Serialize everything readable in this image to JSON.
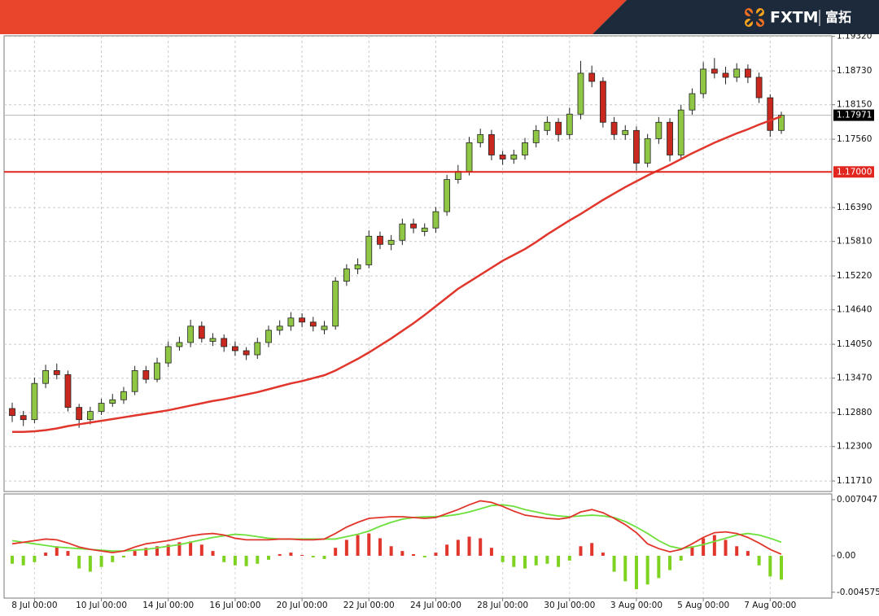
{
  "header": {
    "brand": "FXTM",
    "brand_cn": "富拓"
  },
  "chart_data": [
    {
      "type": "candlestick",
      "categories": [
        null,
        null,
        "8 Jul 00:00",
        null,
        null,
        null,
        null,
        null,
        "10 Jul 00:00",
        null,
        null,
        null,
        null,
        null,
        "14 Jul 00:00",
        null,
        null,
        null,
        null,
        null,
        "16 Jul 00:00",
        null,
        null,
        null,
        null,
        null,
        "20 Jul 00:00",
        null,
        null,
        null,
        null,
        null,
        "22 Jul 00:00",
        null,
        null,
        null,
        null,
        null,
        "24 Jul 00:00",
        null,
        null,
        null,
        null,
        null,
        "28 Jul 00:00",
        null,
        null,
        null,
        null,
        null,
        "30 Jul 00:00",
        null,
        null,
        null,
        null,
        null,
        "3 Aug 00:00",
        null,
        null,
        null,
        null,
        null,
        "5 Aug 00:00",
        null,
        null,
        null,
        null,
        null,
        "7 Aug 00:00",
        null
      ],
      "open": [
        1.1295,
        1.1283,
        1.1276,
        1.1338,
        1.136,
        1.1353,
        1.1297,
        1.1276,
        1.129,
        1.1304,
        1.131,
        1.1324,
        1.136,
        1.1345,
        1.1373,
        1.1401,
        1.1408,
        1.1436,
        1.141,
        1.1415,
        1.1401,
        1.1394,
        1.1387,
        1.1408,
        1.1429,
        1.1436,
        1.145,
        1.1443,
        1.143,
        1.1436,
        1.1513,
        1.1534,
        1.1541,
        1.159,
        1.1576,
        1.1583,
        1.1611,
        1.1598,
        1.1604,
        1.1632,
        1.1687,
        1.1701,
        1.175,
        1.1764,
        1.1729,
        1.1722,
        1.1729,
        1.175,
        1.1771,
        1.1785,
        1.1764,
        1.1799,
        1.1869,
        1.1855,
        1.1785,
        1.1764,
        1.1771,
        1.1715,
        1.1757,
        1.1785,
        1.1729,
        1.1806,
        1.1834,
        1.1876,
        1.1869,
        1.1862,
        1.1876,
        1.1862,
        1.1827,
        1.1771
      ],
      "high": [
        1.1305,
        1.1291,
        1.1348,
        1.137,
        1.1372,
        1.136,
        1.1303,
        1.1298,
        1.1312,
        1.132,
        1.1332,
        1.1368,
        1.1368,
        1.1382,
        1.141,
        1.1418,
        1.1447,
        1.1444,
        1.1424,
        1.1422,
        1.141,
        1.14,
        1.1416,
        1.1437,
        1.1446,
        1.146,
        1.1458,
        1.1452,
        1.1445,
        1.152,
        1.1542,
        1.1552,
        1.16,
        1.1598,
        1.1592,
        1.162,
        1.162,
        1.1612,
        1.164,
        1.1695,
        1.1712,
        1.176,
        1.1774,
        1.1772,
        1.1736,
        1.1738,
        1.1758,
        1.178,
        1.1795,
        1.1792,
        1.181,
        1.189,
        1.1882,
        1.1862,
        1.1794,
        1.178,
        1.1778,
        1.1765,
        1.1794,
        1.1792,
        1.1815,
        1.1843,
        1.1888,
        1.1895,
        1.188,
        1.1886,
        1.1884,
        1.187,
        1.1833,
        1.1803
      ],
      "low": [
        1.1272,
        1.1265,
        1.127,
        1.133,
        1.1345,
        1.129,
        1.1262,
        1.1268,
        1.1284,
        1.1298,
        1.1303,
        1.1318,
        1.1338,
        1.134,
        1.1366,
        1.1394,
        1.14,
        1.1408,
        1.1402,
        1.1392,
        1.1385,
        1.1378,
        1.138,
        1.14,
        1.1421,
        1.1428,
        1.1434,
        1.1427,
        1.1422,
        1.143,
        1.1505,
        1.1525,
        1.1535,
        1.1568,
        1.1566,
        1.1575,
        1.1595,
        1.159,
        1.1596,
        1.1625,
        1.168,
        1.1694,
        1.1742,
        1.172,
        1.1712,
        1.1714,
        1.1721,
        1.1742,
        1.1763,
        1.1752,
        1.1756,
        1.179,
        1.1845,
        1.1776,
        1.1755,
        1.1755,
        1.1702,
        1.1708,
        1.1748,
        1.1718,
        1.1722,
        1.1798,
        1.1826,
        1.186,
        1.185,
        1.1854,
        1.1852,
        1.1818,
        1.176,
        1.1765
      ],
      "close": [
        1.1283,
        1.1276,
        1.1338,
        1.136,
        1.1353,
        1.1297,
        1.1276,
        1.129,
        1.1304,
        1.131,
        1.1324,
        1.136,
        1.1345,
        1.1373,
        1.1401,
        1.1408,
        1.1436,
        1.1415,
        1.1415,
        1.1401,
        1.1394,
        1.1387,
        1.1408,
        1.1429,
        1.1436,
        1.145,
        1.1443,
        1.1436,
        1.1436,
        1.1513,
        1.1534,
        1.1541,
        1.159,
        1.1576,
        1.1583,
        1.1611,
        1.1604,
        1.1604,
        1.1632,
        1.1687,
        1.1701,
        1.175,
        1.1764,
        1.1729,
        1.1722,
        1.1729,
        1.175,
        1.1771,
        1.1785,
        1.1764,
        1.1799,
        1.1869,
        1.1855,
        1.1785,
        1.1764,
        1.1771,
        1.1715,
        1.1757,
        1.1785,
        1.1729,
        1.1806,
        1.1834,
        1.1876,
        1.1869,
        1.1862,
        1.1876,
        1.1862,
        1.1827,
        1.1771,
        1.1797
      ],
      "up_color": "#8fc744",
      "down_color": "#c8281e",
      "moving_average": {
        "color": "#e0362c",
        "values": [
          1.1255,
          1.1255,
          1.1256,
          1.1258,
          1.1261,
          1.1265,
          1.1268,
          1.1271,
          1.1274,
          1.1277,
          1.128,
          1.1283,
          1.1286,
          1.1289,
          1.1292,
          1.1296,
          1.13,
          1.1304,
          1.1308,
          1.1311,
          1.1315,
          1.1319,
          1.1323,
          1.1328,
          1.1333,
          1.1338,
          1.1342,
          1.1347,
          1.1352,
          1.136,
          1.137,
          1.138,
          1.1391,
          1.1403,
          1.1415,
          1.1428,
          1.1441,
          1.1455,
          1.147,
          1.1485,
          1.15,
          1.1512,
          1.1524,
          1.1536,
          1.1548,
          1.1558,
          1.1568,
          1.158,
          1.1593,
          1.1605,
          1.1617,
          1.1628,
          1.164,
          1.1652,
          1.1663,
          1.1674,
          1.1684,
          1.1694,
          1.1703,
          1.1712,
          1.1722,
          1.1732,
          1.1741,
          1.175,
          1.1758,
          1.1766,
          1.1773,
          1.1781,
          1.1788,
          1.1795
        ]
      },
      "ylim": [
        1.1153,
        1.1933
      ],
      "yticks": [
        {
          "value": 1.1932,
          "label": "1.19320"
        },
        {
          "value": 1.1873,
          "label": "1.18730"
        },
        {
          "value": 1.1815,
          "label": "1.18150"
        },
        {
          "value": 1.1756,
          "label": "1.17560"
        },
        {
          "value": 1.1639,
          "label": "1.16390"
        },
        {
          "value": 1.1581,
          "label": "1.15810"
        },
        {
          "value": 1.1522,
          "label": "1.15220"
        },
        {
          "value": 1.1464,
          "label": "1.14640"
        },
        {
          "value": 1.1405,
          "label": "1.14050"
        },
        {
          "value": 1.1347,
          "label": "1.13470"
        },
        {
          "value": 1.1288,
          "label": "1.12880"
        },
        {
          "value": 1.123,
          "label": "1.12300"
        },
        {
          "value": 1.1171,
          "label": "1.11710"
        }
      ],
      "grid": true,
      "levels": [
        {
          "value": 1.17,
          "label": "1.17000",
          "color": "#e0261f"
        }
      ],
      "last_price": {
        "value": 1.17971,
        "label": "1.17971"
      }
    },
    {
      "type": "macd",
      "histogram": [
        -0.001,
        -0.0012,
        -0.0008,
        0.0004,
        0.0012,
        0.0006,
        -0.0016,
        -0.002,
        -0.0014,
        -0.0008,
        -0.0002,
        0.0006,
        0.001,
        0.0012,
        0.0014,
        0.0017,
        0.0018,
        0.0014,
        0.0006,
        -0.0008,
        -0.0012,
        -0.0013,
        -0.001,
        -0.0005,
        0.0002,
        0.0004,
        0.0001,
        -0.0002,
        -0.0004,
        0.001,
        0.002,
        0.0026,
        0.0028,
        0.0022,
        0.0012,
        0.0006,
        0.0002,
        -0.0002,
        0.0004,
        0.0014,
        0.002,
        0.0024,
        0.0022,
        0.001,
        -0.0008,
        -0.0014,
        -0.0016,
        -0.0012,
        -0.001,
        -0.0014,
        -0.0006,
        0.0012,
        0.0016,
        0.0004,
        -0.002,
        -0.0032,
        -0.0042,
        -0.0036,
        -0.0028,
        -0.0018,
        -0.0006,
        0.0012,
        0.0022,
        0.0026,
        0.002,
        0.0012,
        0.0006,
        -0.0012,
        -0.0026,
        -0.003
      ],
      "up_color": "#e0362c",
      "down_color": "#7ed321",
      "macd": {
        "color": "#e0362c",
        "values": [
          0.0015,
          0.0017,
          0.0019,
          0.0021,
          0.002,
          0.0016,
          0.0011,
          0.0008,
          0.0006,
          0.0004,
          0.0006,
          0.0011,
          0.0015,
          0.0017,
          0.0019,
          0.0022,
          0.0025,
          0.0027,
          0.0028,
          0.0026,
          0.0022,
          0.002,
          0.002,
          0.002,
          0.0021,
          0.0021,
          0.002,
          0.002,
          0.0021,
          0.0028,
          0.0036,
          0.0042,
          0.0047,
          0.0048,
          0.0049,
          0.0049,
          0.0048,
          0.0047,
          0.0048,
          0.0053,
          0.0058,
          0.0064,
          0.0069,
          0.0067,
          0.0062,
          0.0056,
          0.0051,
          0.0049,
          0.0047,
          0.0046,
          0.0048,
          0.0055,
          0.0058,
          0.0054,
          0.0047,
          0.0039,
          0.0029,
          0.0015,
          0.0009,
          0.0005,
          0.0008,
          0.0015,
          0.0023,
          0.0029,
          0.003,
          0.0028,
          0.0023,
          0.0016,
          0.0008,
          0.0002
        ]
      },
      "signal": {
        "color": "#6ee03c",
        "values": [
          0.0019,
          0.0017,
          0.0015,
          0.0013,
          0.0011,
          0.001,
          0.0009,
          0.0008,
          0.0007,
          0.0006,
          0.0006,
          0.0007,
          0.0008,
          0.001,
          0.0012,
          0.0014,
          0.0017,
          0.002,
          0.0023,
          0.0025,
          0.0027,
          0.0026,
          0.0024,
          0.0022,
          0.0021,
          0.0021,
          0.0021,
          0.0021,
          0.0021,
          0.0021,
          0.0024,
          0.0027,
          0.0031,
          0.0037,
          0.0042,
          0.0046,
          0.0048,
          0.0049,
          0.0049,
          0.005,
          0.0052,
          0.0055,
          0.0059,
          0.0063,
          0.0064,
          0.0062,
          0.0058,
          0.0055,
          0.0052,
          0.005,
          0.0049,
          0.005,
          0.0051,
          0.005,
          0.0048,
          0.0043,
          0.0036,
          0.0028,
          0.0019,
          0.0012,
          0.0009,
          0.0011,
          0.0014,
          0.0018,
          0.0022,
          0.0026,
          0.0028,
          0.0026,
          0.0022,
          0.0017
        ]
      },
      "ylim": [
        -0.00531,
        0.00776
      ],
      "yticks": [
        0.007047,
        {
          "value": 0,
          "label": "0.00"
        },
        -0.004575
      ]
    }
  ]
}
